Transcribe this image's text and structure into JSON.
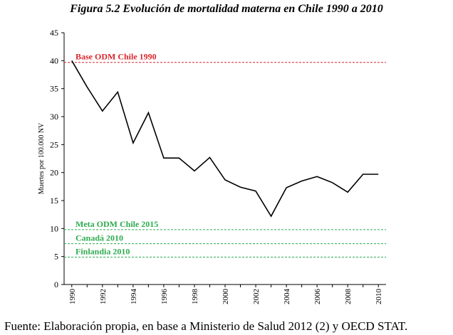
{
  "title": "Figura 5.2 Evolución de mortalidad materna en Chile 1990 a 2010",
  "source": "Fuente: Elaboración propia, en base a Ministerio de Salud 2012 (2) y OECD STAT.",
  "chart_data": {
    "type": "line",
    "ylabel": "Muertes por 100.000 NV",
    "xlabel": "",
    "ylim": [
      0,
      45
    ],
    "yticks": [
      0,
      5,
      10,
      15,
      20,
      25,
      30,
      35,
      40,
      45
    ],
    "xtick_labels": [
      "1990",
      "1992",
      "1994",
      "1996",
      "1998",
      "2000",
      "2002",
      "2004",
      "2006",
      "2008",
      "2010"
    ],
    "grid": false,
    "x": [
      1990,
      1991,
      1992,
      1993,
      1994,
      1995,
      1996,
      1997,
      1998,
      1999,
      2000,
      2001,
      2002,
      2003,
      2004,
      2005,
      2006,
      2007,
      2008,
      2009,
      2010
    ],
    "values": [
      40.0,
      35.3,
      31.0,
      34.4,
      25.3,
      30.7,
      22.6,
      22.6,
      20.3,
      22.7,
      18.7,
      17.4,
      16.7,
      12.2,
      17.3,
      18.5,
      19.3,
      18.2,
      16.5,
      19.7,
      19.7
    ],
    "line_color": "#000000",
    "reference_lines": [
      {
        "label": "Base ODM Chile 1990",
        "value": 39.7,
        "color": "#d9262b"
      },
      {
        "label": "Meta ODM Chile 2015",
        "value": 9.8,
        "color": "#2bab4e"
      },
      {
        "label": "Canadá 2010",
        "value": 7.3,
        "color": "#2bab4e"
      },
      {
        "label": "Finlandia 2010",
        "value": 4.9,
        "color": "#2bab4e"
      }
    ]
  }
}
